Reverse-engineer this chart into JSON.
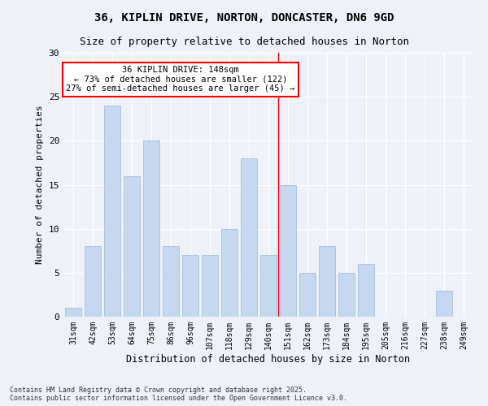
{
  "title1": "36, KIPLIN DRIVE, NORTON, DONCASTER, DN6 9GD",
  "title2": "Size of property relative to detached houses in Norton",
  "xlabel": "Distribution of detached houses by size in Norton",
  "ylabel": "Number of detached properties",
  "categories": [
    "31sqm",
    "42sqm",
    "53sqm",
    "64sqm",
    "75sqm",
    "86sqm",
    "96sqm",
    "107sqm",
    "118sqm",
    "129sqm",
    "140sqm",
    "151sqm",
    "162sqm",
    "173sqm",
    "184sqm",
    "195sqm",
    "205sqm",
    "216sqm",
    "227sqm",
    "238sqm",
    "249sqm"
  ],
  "values": [
    1,
    8,
    24,
    16,
    20,
    8,
    7,
    7,
    10,
    18,
    7,
    15,
    5,
    8,
    5,
    6,
    0,
    0,
    0,
    3,
    0
  ],
  "bar_color": "#c5d8f0",
  "bar_edge_color": "#a0b8d8",
  "reference_line_label": "36 KIPLIN DRIVE: 148sqm",
  "annotation_line1": "← 73% of detached houses are smaller (122)",
  "annotation_line2": "27% of semi-detached houses are larger (45) →",
  "annotation_box_color": "white",
  "annotation_box_edge_color": "red",
  "vline_color": "red",
  "vline_index": 10.5,
  "ylim": [
    0,
    30
  ],
  "yticks": [
    0,
    5,
    10,
    15,
    20,
    25,
    30
  ],
  "background_color": "#eef2f8",
  "grid_color": "white",
  "footer1": "Contains HM Land Registry data © Crown copyright and database right 2025.",
  "footer2": "Contains public sector information licensed under the Open Government Licence v3.0."
}
